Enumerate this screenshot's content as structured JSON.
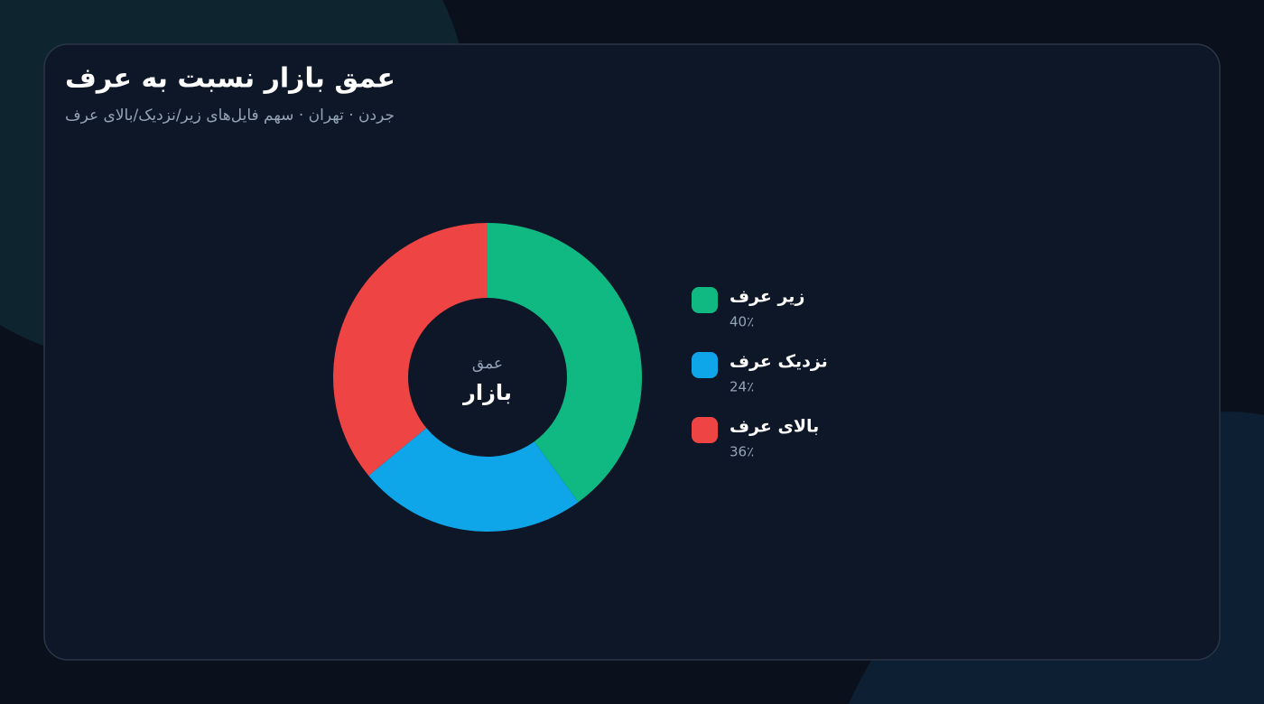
{
  "chart_data": {
    "type": "donut",
    "title": "عمق بازار نسبت به عرف",
    "subtitle": "جردن · تهران · سهم فایل‌های زیر/نزدیک/بالای عرف",
    "center_text": {
      "top": "عمق",
      "bottom": "بازار"
    },
    "categories": [
      "زیر عرف",
      "نزدیک عرف",
      "بالای عرف"
    ],
    "values": [
      40,
      24,
      36
    ],
    "value_labels": [
      "40٪",
      "24٪",
      "36٪"
    ],
    "colors": [
      "#10b981",
      "#0ea5e9",
      "#ef4444"
    ]
  }
}
